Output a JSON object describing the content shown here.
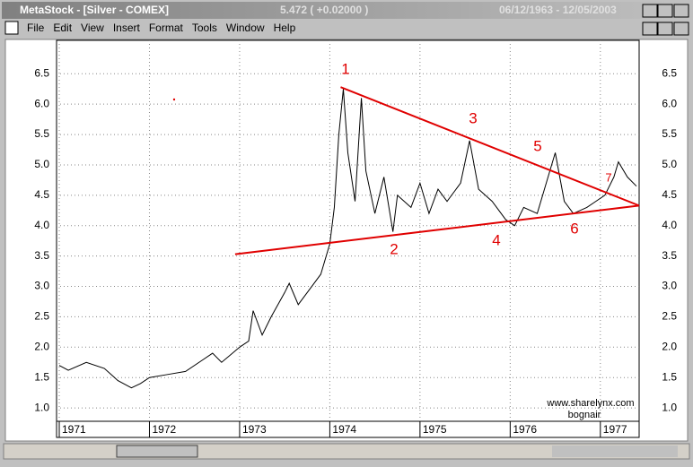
{
  "window": {
    "title": "MetaStock - [Silver - COMEX]",
    "quote": "5.472 ( +0.02000 )",
    "range": "06/12/1963 - 12/05/2003"
  },
  "menu": [
    "File",
    "Edit",
    "View",
    "Insert",
    "Format",
    "Tools",
    "Window",
    "Help"
  ],
  "chart_data": {
    "type": "line",
    "x": [
      1971.0,
      1971.1,
      1971.3,
      1971.5,
      1971.65,
      1971.8,
      1971.9,
      1972.0,
      1972.2,
      1972.4,
      1972.6,
      1972.7,
      1972.8,
      1973.0,
      1973.1,
      1973.15,
      1973.25,
      1973.35,
      1973.5,
      1973.55,
      1973.65,
      1973.8,
      1973.9,
      1974.0,
      1974.05,
      1974.1,
      1974.15,
      1974.2,
      1974.28,
      1974.35,
      1974.4,
      1974.5,
      1974.6,
      1974.7,
      1974.75,
      1974.9,
      1975.0,
      1975.1,
      1975.2,
      1975.3,
      1975.45,
      1975.55,
      1975.65,
      1975.8,
      1975.95,
      1976.05,
      1976.15,
      1976.3,
      1976.4,
      1976.5,
      1976.6,
      1976.7,
      1976.85,
      1976.95,
      1977.05,
      1977.15,
      1977.2,
      1977.3,
      1977.4
    ],
    "series": [
      {
        "color": "#000000",
        "values": [
          1.7,
          1.62,
          1.75,
          1.65,
          1.45,
          1.33,
          1.4,
          1.5,
          1.55,
          1.6,
          1.8,
          1.9,
          1.75,
          2.0,
          2.1,
          2.6,
          2.2,
          2.5,
          2.9,
          3.05,
          2.7,
          3.0,
          3.2,
          3.7,
          4.3,
          5.5,
          6.25,
          5.2,
          4.4,
          6.1,
          4.9,
          4.2,
          4.8,
          3.9,
          4.5,
          4.3,
          4.7,
          4.2,
          4.6,
          4.4,
          4.7,
          5.4,
          4.6,
          4.4,
          4.1,
          4.0,
          4.3,
          4.2,
          4.7,
          5.2,
          4.4,
          4.2,
          4.3,
          4.4,
          4.5,
          4.8,
          5.05,
          4.8,
          4.65
        ]
      }
    ],
    "trendlines": [
      {
        "color": "#e00000",
        "x": [
          1974.12,
          1977.43
        ],
        "y": [
          6.28,
          4.33
        ]
      },
      {
        "color": "#e00000",
        "x": [
          1972.95,
          1977.43
        ],
        "y": [
          3.53,
          4.33
        ]
      }
    ],
    "annotations": [
      "1",
      "2",
      "3",
      "4",
      "5",
      "6",
      "7"
    ],
    "watermark": [
      "www.sharelynx.com",
      "bognair"
    ],
    "xlim": [
      1970.97,
      1977.43
    ],
    "xticks": [
      1971,
      1972,
      1973,
      1974,
      1975,
      1976,
      1977
    ],
    "ylim": [
      0.78,
      7.05
    ],
    "yticks": [
      {
        "value": 1,
        "label": "1.0"
      },
      {
        "value": 1.5,
        "label": "1.5"
      },
      {
        "value": 2,
        "label": "2.0"
      },
      {
        "value": 2.5,
        "label": "2.5"
      },
      {
        "value": 3,
        "label": "3.0"
      },
      {
        "value": 3.5,
        "label": "3.5"
      },
      {
        "value": 4,
        "label": "4.0"
      },
      {
        "value": 4.5,
        "label": "4.5"
      },
      {
        "value": 5,
        "label": "5.0"
      },
      {
        "value": 5.5,
        "label": "5.5"
      },
      {
        "value": 6,
        "label": "6.0"
      },
      {
        "value": 6.5,
        "label": "6.5"
      }
    ],
    "grid": true
  }
}
